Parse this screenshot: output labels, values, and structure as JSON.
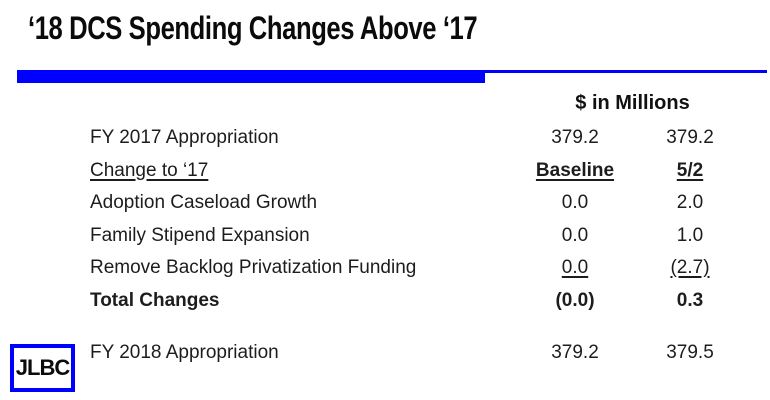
{
  "slide": {
    "title": "‘18 DCS Spending Changes Above ‘17",
    "accent_color": "#0000FF",
    "background_color": "#FFFFFF",
    "logo_text": "JLBC"
  },
  "table": {
    "units_header": "$ in Millions",
    "rows": [
      {
        "label": "FY 2017 Appropriation",
        "col1": "379.2",
        "col2": "379.2"
      },
      {
        "label": "Change to ‘17",
        "col1": "Baseline",
        "col2": "5/2"
      },
      {
        "label": "Adoption Caseload Growth",
        "col1": "0.0",
        "col2": "2.0"
      },
      {
        "label": "Family Stipend Expansion",
        "col1": "0.0",
        "col2": "1.0"
      },
      {
        "label": "Remove Backlog Privatization Funding",
        "col1": "0.0",
        "col2": "(2.7)"
      },
      {
        "label": "Total Changes",
        "col1": "(0.0)",
        "col2": "0.3"
      },
      {
        "label": "FY 2018 Appropriation",
        "col1": "379.2",
        "col2": "379.5"
      }
    ]
  }
}
